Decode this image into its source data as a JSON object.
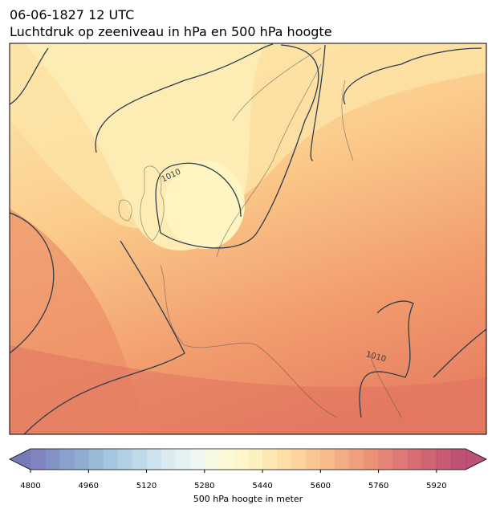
{
  "header": {
    "title": "06-06-1827 12 UTC",
    "subtitle": "Luchtdruk op zeeniveau in hPa en 500 hPa hoogte"
  },
  "map": {
    "contour_labels": [
      "1010",
      "1010"
    ]
  },
  "colorbar": {
    "label": "500 hPa hoogte in meter",
    "lim": [
      4800,
      6000
    ],
    "ticks": [
      4800,
      4960,
      5120,
      5280,
      5440,
      5600,
      5760,
      5920
    ],
    "colors": [
      "#6b6fb3",
      "#6f80bb",
      "#7590c2",
      "#7d9fc9",
      "#88afd1",
      "#95bcd8",
      "#a5c9df",
      "#b3d4e5",
      "#c3deea",
      "#d2e7ef",
      "#e0eff1",
      "#ecf4ee",
      "#f5f8df",
      "#fbf8cf",
      "#fff5c2",
      "#fdedb4",
      "#fde3a6",
      "#fcd898",
      "#fbcb8b",
      "#f9bd80",
      "#f6ae76",
      "#f29e6e",
      "#ed8e67",
      "#e77f62",
      "#e0705f",
      "#d8625d",
      "#cf555c",
      "#c6495c",
      "#bd3e5c",
      "#b3365c"
    ],
    "under_color": "#5e63a9",
    "over_color": "#b0325c"
  }
}
